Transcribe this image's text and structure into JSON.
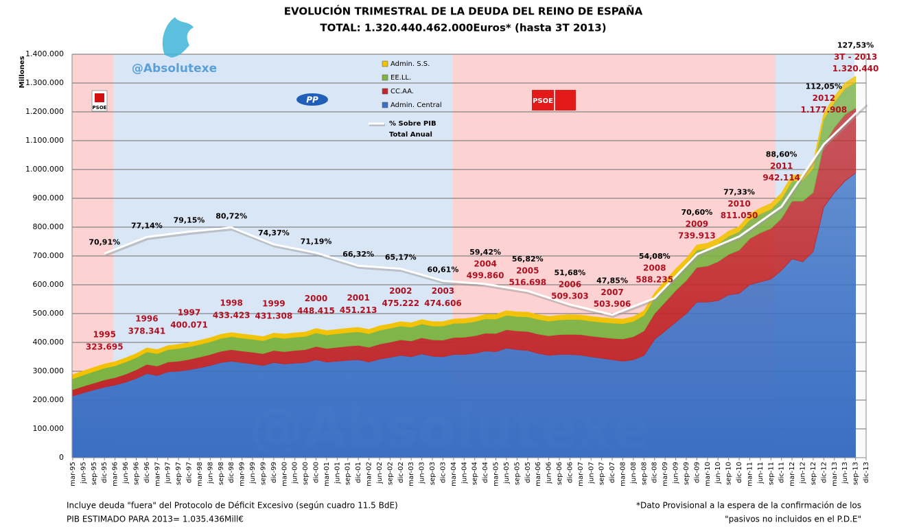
{
  "chart_data": {
    "type": "stacked_area",
    "title": "EVOLUCIÓN TRIMESTRAL DE LA DEUDA DEL REINO DE ESPAÑA",
    "subtitle": "TOTAL: 1.320.440.462.000Euros* (hasta 3T 2013)",
    "handle": "@Absolutexe",
    "y_label": "Millones",
    "logo_texts": {
      "psoe_1": "PSOE",
      "pp": "PP",
      "psoe_2": "PSOE"
    },
    "footnotes": {
      "left_1": "Incluye deuda \"fuera\" del Protocolo de Déficit Excesivo (según cuadro 11.5 BdE)",
      "left_2": "PIB ESTIMADO PARA 2013= 1.035.436Mill€",
      "right_1": "*Dato Provisional a la espera de la confirmación de los",
      "right_2": "\"pasivos no incluidos en el P.D.E\""
    },
    "ylim": [
      0,
      1400000
    ],
    "yticks": [
      0,
      {
        "value": 100000,
        "label": "100.000"
      },
      {
        "value": 200000,
        "label": "200.000"
      },
      {
        "value": 300000,
        "label": "300.000"
      },
      {
        "value": 400000,
        "label": "400.000"
      },
      {
        "value": 500000,
        "label": "500.000"
      },
      {
        "value": 600000,
        "label": "600.000"
      },
      {
        "value": 700000,
        "label": "700.000"
      },
      {
        "value": 800000,
        "label": "800.000"
      },
      {
        "value": 900000,
        "label": "900.000"
      },
      {
        "value": 1000000,
        "label": "1.000.000"
      },
      {
        "value": 1100000,
        "label": "1.100.000"
      },
      {
        "value": 1200000,
        "label": "1.200.000"
      },
      {
        "value": 1300000,
        "label": "1.300.000"
      },
      {
        "value": 1400000,
        "label": "1.400.000"
      }
    ],
    "y2lim": [
      -6,
      146
    ],
    "grid": true,
    "categories": [
      "mar-95",
      "jun-95",
      "sep-95",
      "dic-95",
      "mar-96",
      "jun-96",
      "sep-96",
      "dic-96",
      "mar-97",
      "jun-97",
      "sep-97",
      "dic-97",
      "mar-98",
      "jun-98",
      "sep-98",
      "dic-98",
      "mar-99",
      "jun-99",
      "sep-99",
      "dic-99",
      "mar-00",
      "jun-00",
      "sep-00",
      "dic-00",
      "mar-01",
      "jun-01",
      "sep-01",
      "dic-01",
      "mar-02",
      "jun-02",
      "sep-02",
      "dic-02",
      "mar-03",
      "jun-03",
      "sep-03",
      "dic-03",
      "mar-04",
      "jun-04",
      "sep-04",
      "dic-04",
      "mar-05",
      "jun-05",
      "sep-05",
      "dic-05",
      "mar-06",
      "jun-06",
      "sep-06",
      "dic-06",
      "mar-07",
      "jun-07",
      "sep-07",
      "dic-07",
      "mar-08",
      "jun-08",
      "sep-08",
      "dic-08",
      "mar-09",
      "jun-09",
      "sep-09",
      "dic-09",
      "mar-10",
      "jun-10",
      "sep-10",
      "dic-10",
      "mar-11",
      "jun-11",
      "sep-11",
      "dic-11",
      "mar-12",
      "jun-12",
      "sep-12",
      "dic-12",
      "mar-13",
      "jun-13",
      "sep-13",
      "dic-13"
    ],
    "series": [
      {
        "name": "Admin. Central",
        "color": "#3a6fc4",
        "values": [
          214000,
          225000,
          235000,
          245000,
          252000,
          262000,
          275000,
          292000,
          285000,
          298000,
          300000,
          305000,
          312000,
          320000,
          330000,
          335000,
          330000,
          325000,
          320000,
          330000,
          325000,
          328000,
          330000,
          340000,
          332000,
          335000,
          338000,
          340000,
          332000,
          342000,
          348000,
          355000,
          350000,
          360000,
          352000,
          350000,
          358000,
          358000,
          362000,
          370000,
          368000,
          380000,
          375000,
          372000,
          362000,
          355000,
          358000,
          358000,
          356000,
          350000,
          345000,
          340000,
          335000,
          340000,
          355000,
          410000,
          440000,
          470000,
          500000,
          540000,
          540000,
          545000,
          565000,
          570000,
          600000,
          610000,
          620000,
          650000,
          690000,
          680000,
          715000,
          870000,
          920000,
          960000,
          988000,
          null
        ]
      },
      {
        "name": "CC.AA.",
        "color": "#c0282b",
        "values": [
          22000,
          23000,
          24000,
          25000,
          26000,
          28000,
          30000,
          32000,
          33000,
          34000,
          35000,
          36000,
          37000,
          38000,
          39000,
          40000,
          40000,
          41000,
          41000,
          42000,
          43000,
          44000,
          45000,
          46000,
          47000,
          48000,
          49000,
          50000,
          51000,
          52000,
          53000,
          54000,
          55000,
          56000,
          57000,
          58000,
          59000,
          60000,
          61000,
          62000,
          63000,
          64000,
          65000,
          66000,
          67000,
          68000,
          69000,
          70000,
          71000,
          72000,
          73000,
          74000,
          77000,
          80000,
          85000,
          90000,
          100000,
          110000,
          115000,
          120000,
          125000,
          135000,
          140000,
          150000,
          160000,
          170000,
          175000,
          180000,
          200000,
          210000,
          205000,
          215000,
          225000,
          230000,
          225000,
          null
        ]
      },
      {
        "name": "EE.LL.",
        "color": "#7cb342",
        "values": [
          38000,
          39000,
          40000,
          41000,
          41000,
          42000,
          42000,
          43000,
          43000,
          43000,
          44000,
          44000,
          44000,
          44000,
          45000,
          45000,
          45000,
          45000,
          45000,
          46000,
          46000,
          46000,
          46000,
          47000,
          47000,
          47000,
          47000,
          47000,
          47000,
          48000,
          48000,
          48000,
          48000,
          48000,
          48000,
          49000,
          49000,
          49000,
          49000,
          50000,
          50000,
          50000,
          50000,
          51000,
          51000,
          51000,
          51000,
          52000,
          52000,
          52000,
          52000,
          53000,
          53000,
          53000,
          54000,
          55000,
          56000,
          57000,
          58000,
          60000,
          61000,
          62000,
          63000,
          64000,
          65000,
          66000,
          67000,
          68000,
          70000,
          72000,
          85000,
          88000,
          88000,
          90000,
          90000,
          null
        ]
      },
      {
        "name": "Admin. S.S.",
        "color": "#f2c200",
        "values": [
          14000,
          14000,
          14000,
          14000,
          14000,
          14000,
          14000,
          14000,
          14000,
          14000,
          14000,
          14000,
          14000,
          14000,
          14000,
          14000,
          14000,
          14000,
          14000,
          14000,
          15000,
          15000,
          15000,
          15000,
          15000,
          15000,
          15000,
          15000,
          15000,
          15000,
          15000,
          15000,
          15000,
          15000,
          15000,
          15000,
          15000,
          15000,
          15000,
          15000,
          16000,
          16000,
          16000,
          16000,
          16000,
          16000,
          16000,
          16000,
          16000,
          16000,
          16000,
          16000,
          16000,
          16000,
          16000,
          16000,
          18000,
          18000,
          18000,
          18000,
          18000,
          18000,
          18000,
          18000,
          20000,
          20000,
          20000,
          20000,
          20000,
          20000,
          20000,
          20000,
          20000,
          20000,
          20000,
          null
        ]
      }
    ],
    "pib_line": {
      "name": "% Sobre PIB",
      "axis": "y2",
      "color": "#ffffff",
      "x": [
        "dic-95",
        "dic-96",
        "dic-97",
        "dic-98",
        "dic-99",
        "dic-00",
        "dic-01",
        "dic-02",
        "dic-03",
        "dic-04",
        "dic-05",
        "dic-06",
        "dic-07",
        "dic-08",
        "dic-09",
        "dic-10",
        "dic-11",
        "dic-12",
        "dic-13"
      ],
      "values": [
        70.91,
        77.14,
        79.15,
        80.72,
        74.37,
        71.19,
        66.32,
        65.17,
        60.61,
        59.42,
        56.82,
        51.68,
        47.85,
        54.08,
        70.6,
        77.33,
        88.6,
        112.05,
        127.53
      ],
      "value_labels": [
        "70,91%",
        "77,14%",
        "79,15%",
        "80,72%",
        "74,37%",
        "71,19%",
        "66,32%",
        "65,17%",
        "60,61%",
        "59,42%",
        "56,82%",
        "51,68%",
        "47,85%",
        "54,08%",
        "70,60%",
        "77,33%",
        "88,60%",
        "112,05%",
        "127,53%"
      ]
    },
    "annual_totals": {
      "name": "Total Anual",
      "color": "#b01020",
      "x": [
        "dic-95",
        "dic-96",
        "dic-97",
        "dic-98",
        "dic-99",
        "dic-00",
        "dic-01",
        "dic-02",
        "dic-03",
        "dic-04",
        "dic-05",
        "dic-06",
        "dic-07",
        "dic-08",
        "dic-09",
        "dic-10",
        "dic-11",
        "dic-12",
        "sep-13"
      ],
      "years": [
        "1995",
        "1996",
        "1997",
        "1998",
        "1999",
        "2000",
        "2001",
        "2002",
        "2003",
        "2004",
        "2005",
        "2006",
        "2007",
        "2008",
        "2009",
        "2010",
        "2011",
        "2012",
        "3T - 2013"
      ],
      "values": [
        323695,
        378341,
        400071,
        433423,
        431308,
        448415,
        451213,
        475222,
        474606,
        499860,
        516698,
        509303,
        503906,
        588235,
        739913,
        811050,
        942114,
        1177908,
        1320440
      ],
      "value_labels": [
        "323.695",
        "378.341",
        "400.071",
        "433.423",
        "431.308",
        "448.415",
        "451.213",
        "475.222",
        "474.606",
        "499.860",
        "516.698",
        "509.303",
        "503.906",
        "588.235",
        "739.913",
        "811.050",
        "942.114",
        "1.177.908",
        "1.320.440"
      ]
    }
  }
}
